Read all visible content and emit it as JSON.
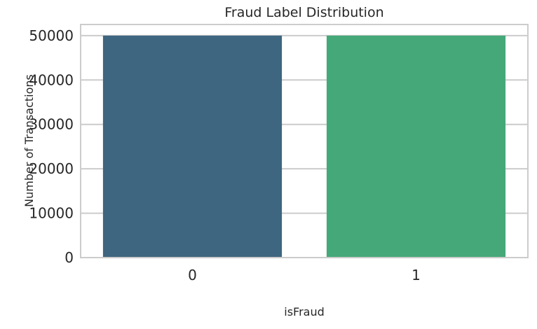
{
  "chart_data": {
    "type": "bar",
    "title": "Fraud Label Distribution",
    "xlabel": "isFraud",
    "ylabel": "Number of Transactions",
    "categories": [
      "0",
      "1"
    ],
    "values": [
      50000,
      50000
    ],
    "ylim": [
      0,
      52500
    ],
    "yticks": [
      0,
      10000,
      20000,
      30000,
      40000,
      50000
    ],
    "grid": true,
    "colors": [
      "#3e6680",
      "#45a878"
    ]
  }
}
